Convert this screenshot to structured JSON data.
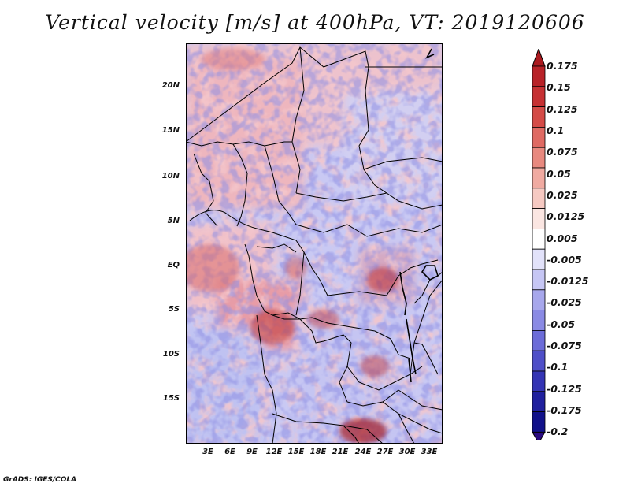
{
  "title": "Vertical velocity [m/s] at 400hPa, VT: 2019120606",
  "credit": "GrADS: IGES/COLA",
  "lat_labels": [
    "20N",
    "15N",
    "10N",
    "5N",
    "EQ",
    "5S",
    "10S",
    "15S"
  ],
  "lon_labels": [
    "3E",
    "6E",
    "9E",
    "12E",
    "15E",
    "18E",
    "21E",
    "24E",
    "27E",
    "30E",
    "33E"
  ],
  "colorbar": {
    "labels": [
      "0.175",
      "0.15",
      "0.125",
      "0.1",
      "0.075",
      "0.05",
      "0.025",
      "0.0125",
      "0.005",
      "-0.005",
      "-0.0125",
      "-0.025",
      "-0.05",
      "-0.075",
      "-0.1",
      "-0.125",
      "-0.175",
      "-0.2"
    ],
    "colors": [
      "#ab1a1f",
      "#b82228",
      "#c63133",
      "#d44b47",
      "#df6a63",
      "#e8897f",
      "#f0aaa1",
      "#f6c9c2",
      "#fbe6e2",
      "#ffffff",
      "#e2e2fa",
      "#c6c6f4",
      "#a7a7ec",
      "#8a8ae4",
      "#6c6cd8",
      "#4f4fc8",
      "#3434b4",
      "#20209e",
      "#11118a",
      "#2a0a80"
    ]
  }
}
